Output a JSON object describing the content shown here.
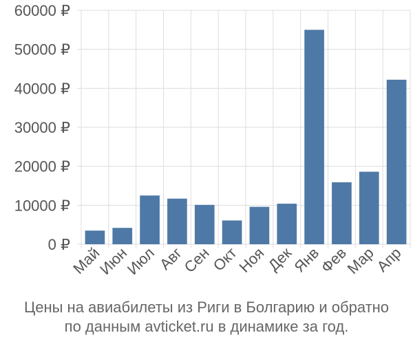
{
  "chart_data": {
    "type": "bar",
    "categories": [
      "Май",
      "Июн",
      "Июл",
      "Авг",
      "Сен",
      "Окт",
      "Ноя",
      "Дек",
      "Янв",
      "Фев",
      "Мар",
      "Апр"
    ],
    "values": [
      3500,
      4200,
      12500,
      11700,
      10100,
      6100,
      9600,
      10400,
      55000,
      15900,
      18600,
      42200
    ],
    "ylim": [
      0,
      60000
    ],
    "yticks": [
      0,
      10000,
      20000,
      30000,
      40000,
      50000,
      60000
    ],
    "ytick_labels": [
      "0 ₽",
      "10000 ₽",
      "20000 ₽",
      "30000 ₽",
      "40000 ₽",
      "50000 ₽",
      "60000 ₽"
    ],
    "grid": true,
    "bar_color": "#4e79a7",
    "grid_color": "#dddddd"
  },
  "caption": {
    "line1": "Цены на авиабилеты из Риги в Болгарию и обратно",
    "line2": "по данным avticket.ru в динамике за год."
  }
}
